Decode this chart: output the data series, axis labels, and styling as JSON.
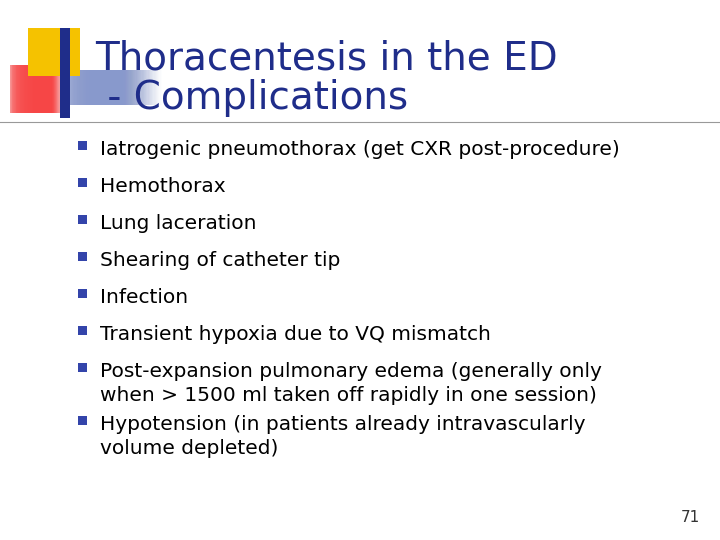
{
  "title_line1": "Thoracentesis in the ED",
  "title_line2": " - Complications",
  "title_color": "#1F2D8A",
  "title_fontsize": 28,
  "background_color": "#FFFFFF",
  "bullet_color": "#3344AA",
  "bullet_fontsize": 14.5,
  "bullet_items": [
    "Iatrogenic pneumothorax (get CXR post-procedure)",
    "Hemothorax",
    "Lung laceration",
    "Shearing of catheter tip",
    "Infection",
    "Transient hypoxia due to VQ mismatch",
    "Post-expansion pulmonary edema (generally only\nwhen > 1500 ml taken off rapidly in one session)",
    "Hypotension (in patients already intravascularly\nvolume depleted)"
  ],
  "slide_number": "71",
  "slide_number_color": "#333333",
  "slide_number_fontsize": 11,
  "divider_color": "#999999",
  "logo_colors": {
    "yellow": "#F5C200",
    "red_top": "#FF6666",
    "red_bottom": "#CC0000",
    "blue_dark": "#1F2D8A",
    "blue_light": "#8899CC"
  }
}
